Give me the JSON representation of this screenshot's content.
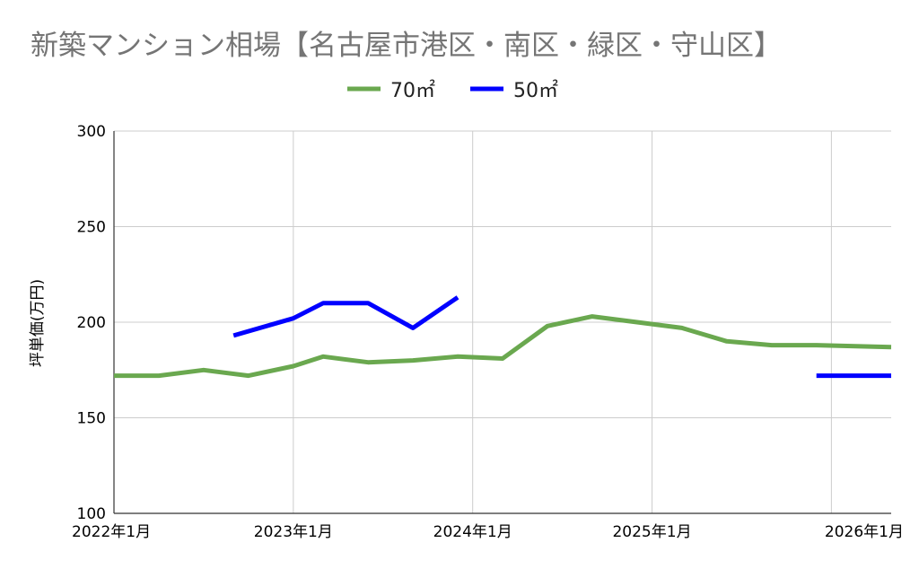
{
  "chart_data": {
    "type": "line",
    "title": "新築マンション相場【名古屋市港区・南区・緑区・守山区】",
    "xlabel": "",
    "ylabel": "坪単価(万円)",
    "ylim": [
      100,
      300
    ],
    "yticks": [
      "100",
      "150",
      "200",
      "250",
      "300"
    ],
    "xlim": [
      "2022-01",
      "2026-05"
    ],
    "xticks": [
      {
        "date": "2022-01",
        "label": "2022年1月"
      },
      {
        "date": "2023-01",
        "label": "2023年1月"
      },
      {
        "date": "2024-01",
        "label": "2024年1月"
      },
      {
        "date": "2025-01",
        "label": "2025年1月"
      },
      {
        "date": "2026-01",
        "label": "2026年1月"
      }
    ],
    "grid": true,
    "legend": "top-center",
    "series": [
      {
        "name": "70㎡",
        "color": "#6aa84f",
        "points": [
          {
            "x": "2022-01",
            "y": 172
          },
          {
            "x": "2022-04",
            "y": 172
          },
          {
            "x": "2022-07",
            "y": 175
          },
          {
            "x": "2022-10",
            "y": 172
          },
          {
            "x": "2023-01",
            "y": 177
          },
          {
            "x": "2023-03",
            "y": 182
          },
          {
            "x": "2023-06",
            "y": 179
          },
          {
            "x": "2023-09",
            "y": 180
          },
          {
            "x": "2023-12",
            "y": 182
          },
          {
            "x": "2024-03",
            "y": 181
          },
          {
            "x": "2024-06",
            "y": 198
          },
          {
            "x": "2024-09",
            "y": 203
          },
          {
            "x": "2024-12",
            "y": 200
          },
          {
            "x": "2025-03",
            "y": 197
          },
          {
            "x": "2025-06",
            "y": 190
          },
          {
            "x": "2025-09",
            "y": 188
          },
          {
            "x": "2025-12",
            "y": 188
          },
          {
            "x": "2026-05",
            "y": 187
          }
        ]
      },
      {
        "name": "50㎡",
        "color": "#0000ff",
        "points": [
          {
            "x": "2022-09",
            "y": 193
          },
          {
            "x": "2023-01",
            "y": 202
          },
          {
            "x": "2023-03",
            "y": 210
          },
          {
            "x": "2023-06",
            "y": 210
          },
          {
            "x": "2023-09",
            "y": 197
          },
          {
            "x": "2023-12",
            "y": 213
          },
          {
            "x": "2025-12",
            "y": 172
          },
          {
            "x": "2026-05",
            "y": 172
          }
        ],
        "segments": [
          [
            0,
            5
          ],
          [
            6,
            7
          ]
        ]
      }
    ]
  }
}
